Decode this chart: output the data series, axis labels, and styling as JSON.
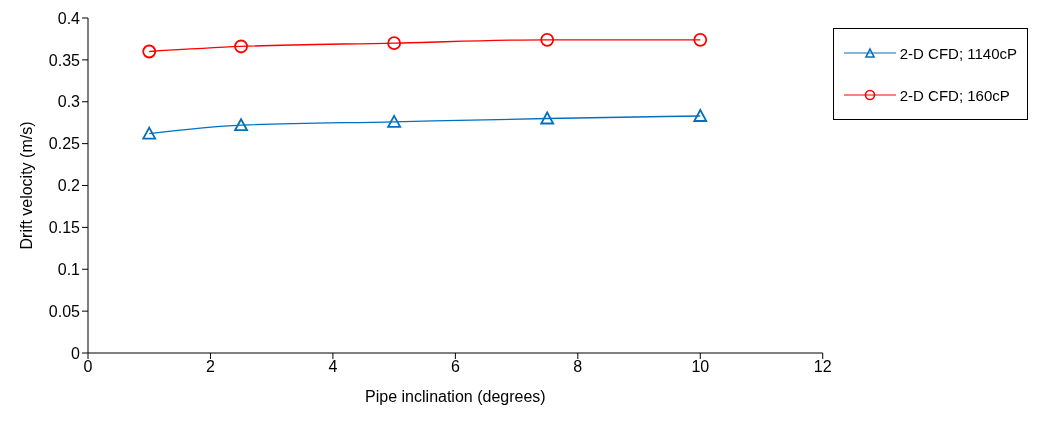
{
  "chart_data": {
    "type": "line",
    "xlabel": "Pipe inclination (degrees)",
    "ylabel": "Drift velocity (m/s)",
    "x": [
      1,
      2.5,
      5,
      7.5,
      10
    ],
    "xlim": [
      0,
      12
    ],
    "xticks": [
      0,
      2,
      4,
      6,
      8,
      10,
      12
    ],
    "ylim": [
      0,
      0.4
    ],
    "yticks": [
      0,
      0.05,
      0.1,
      0.15,
      0.2,
      0.25,
      0.3,
      0.35,
      0.4
    ],
    "grid": false,
    "legend": "right",
    "line_style": "solid",
    "series": [
      {
        "name": "2-D CFD; 1140cP",
        "color": "#0070c0",
        "marker": "triangle",
        "values": [
          0.262,
          0.272,
          0.276,
          0.28,
          0.283
        ]
      },
      {
        "name": "2-D CFD; 160cP",
        "color": "#ff0000",
        "marker": "circle",
        "values": [
          0.36,
          0.366,
          0.37,
          0.374,
          0.374
        ]
      }
    ]
  }
}
